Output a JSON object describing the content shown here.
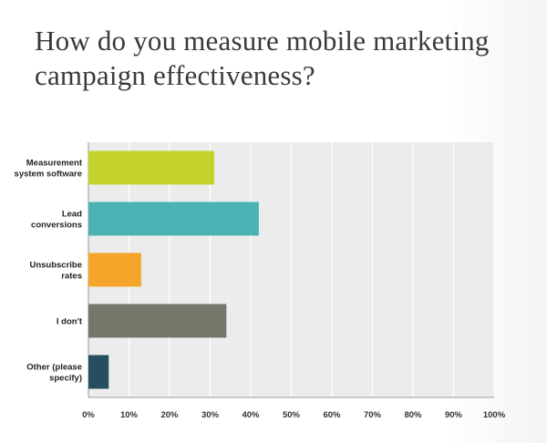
{
  "title": "How do you measure mobile marketing campaign effectiveness?",
  "colors": {
    "plot_background": "#ececec",
    "gridline": "#ffffff",
    "axis": "#9a9a9a"
  },
  "chart_data": {
    "type": "bar",
    "orientation": "horizontal",
    "categories": [
      [
        "Measurement",
        "system software"
      ],
      [
        "Lead",
        "conversions"
      ],
      [
        "Unsubscribe",
        "rates"
      ],
      [
        "I don't"
      ],
      [
        "Other (please",
        "specify)"
      ]
    ],
    "values": [
      31,
      42,
      13,
      34,
      5
    ],
    "bar_colors": [
      "#c3d32c",
      "#4bb3b3",
      "#f4a52a",
      "#74776a",
      "#254f5c"
    ],
    "xlim": [
      0,
      100
    ],
    "xticks": [
      "0%",
      "10%",
      "20%",
      "30%",
      "40%",
      "50%",
      "60%",
      "70%",
      "80%",
      "90%",
      "100%"
    ],
    "grid": true,
    "xlabel": "",
    "ylabel": ""
  }
}
